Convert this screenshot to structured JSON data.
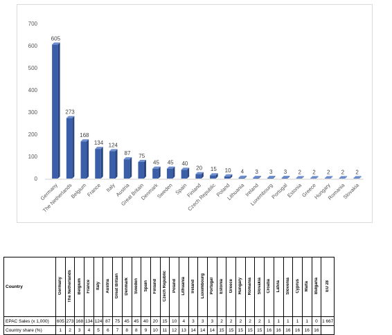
{
  "chart_data": {
    "type": "bar",
    "categories": [
      "Germany",
      "The Netherlands",
      "Belgium",
      "France",
      "Italy",
      "Austria",
      "Great Britain",
      "Denmark",
      "Sweden",
      "Spain",
      "Finland",
      "Czech Republic",
      "Poland",
      "Lithuania",
      "Ireland",
      "Luxembourg",
      "Portugal",
      "Estonia",
      "Greece",
      "Hungary",
      "Romania",
      "Slovakia"
    ],
    "values": [
      605,
      273,
      168,
      134,
      124,
      87,
      75,
      45,
      45,
      40,
      20,
      15,
      10,
      4,
      3,
      3,
      3,
      2,
      2,
      2,
      2,
      2
    ],
    "ylim": [
      0,
      700
    ],
    "yticks": [
      0,
      100,
      200,
      300,
      400,
      500,
      600,
      700
    ],
    "grid": false,
    "bar_color": "#3a5ea8"
  },
  "table": {
    "header_label": "Country",
    "columns": [
      "Germany",
      "The Netherlands",
      "Belgium",
      "France",
      "Italy",
      "Austria",
      "Great Britain",
      "Denmark",
      "Sweden",
      "Spain",
      "Finland",
      "Czech Republic",
      "Poland",
      "Lithuania",
      "Ireland",
      "Luxembourg",
      "Portugal",
      "Estonia",
      "Greece",
      "Hungary",
      "Romania",
      "Slovakia",
      "Croatia",
      "Latvia",
      "Slovenia",
      "Cyprus",
      "Malta",
      "Bulgaria",
      "EU 28"
    ],
    "rows": [
      {
        "label": "EPAC Sales (x 1,000)",
        "values": [
          "605",
          "273",
          "168",
          "134",
          "124",
          "87",
          "75",
          "45",
          "45",
          "40",
          "20",
          "15",
          "10",
          "4",
          "3",
          "3",
          "3",
          "2",
          "2",
          "2",
          "2",
          "2",
          "1",
          "1",
          "1",
          "1",
          "1",
          "0",
          "1 667"
        ]
      },
      {
        "label": "Country share (%)",
        "values": [
          "1",
          "2",
          "3",
          "4",
          "5",
          "6",
          "7",
          "8",
          "8",
          "9",
          "10",
          "11",
          "12",
          "13",
          "14",
          "14",
          "14",
          "15",
          "15",
          "15",
          "15",
          "15",
          "16",
          "16",
          "16",
          "16",
          "16",
          "16",
          ""
        ]
      }
    ]
  }
}
